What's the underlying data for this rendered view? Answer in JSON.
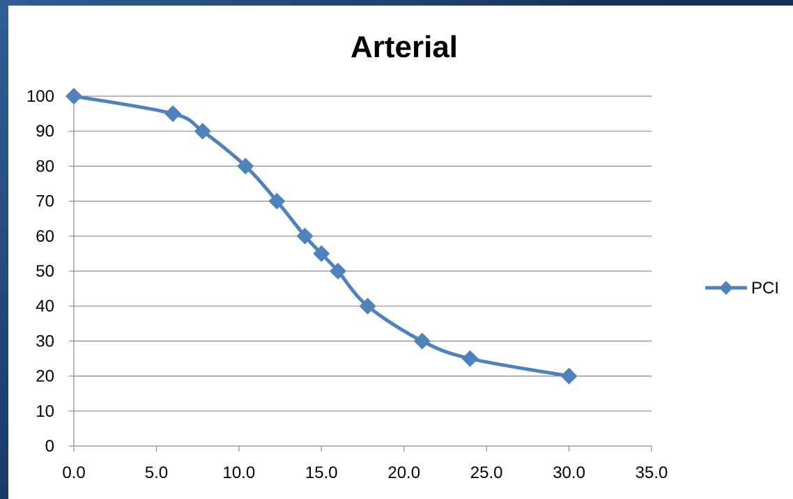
{
  "chart_data": {
    "type": "line",
    "title": "Arterial",
    "xlabel": "",
    "ylabel": "",
    "xlim": [
      0,
      35
    ],
    "ylim": [
      0,
      100
    ],
    "x_ticks": [
      "0.0",
      "5.0",
      "10.0",
      "15.0",
      "20.0",
      "25.0",
      "30.0",
      "35.0"
    ],
    "y_ticks": [
      "0",
      "10",
      "20",
      "30",
      "40",
      "50",
      "60",
      "70",
      "80",
      "90",
      "100"
    ],
    "grid": "horizontal",
    "legend_position": "right",
    "series": [
      {
        "name": "PCI",
        "color": "#4f81bd",
        "marker": "diamond",
        "points": [
          {
            "x": 0.0,
            "y": 100
          },
          {
            "x": 6.0,
            "y": 95
          },
          {
            "x": 7.8,
            "y": 90
          },
          {
            "x": 10.4,
            "y": 80
          },
          {
            "x": 12.3,
            "y": 70
          },
          {
            "x": 14.0,
            "y": 60
          },
          {
            "x": 15.0,
            "y": 55
          },
          {
            "x": 16.0,
            "y": 50
          },
          {
            "x": 17.8,
            "y": 40
          },
          {
            "x": 21.1,
            "y": 30
          },
          {
            "x": 24.0,
            "y": 25
          },
          {
            "x": 30.0,
            "y": 20
          }
        ]
      }
    ]
  }
}
